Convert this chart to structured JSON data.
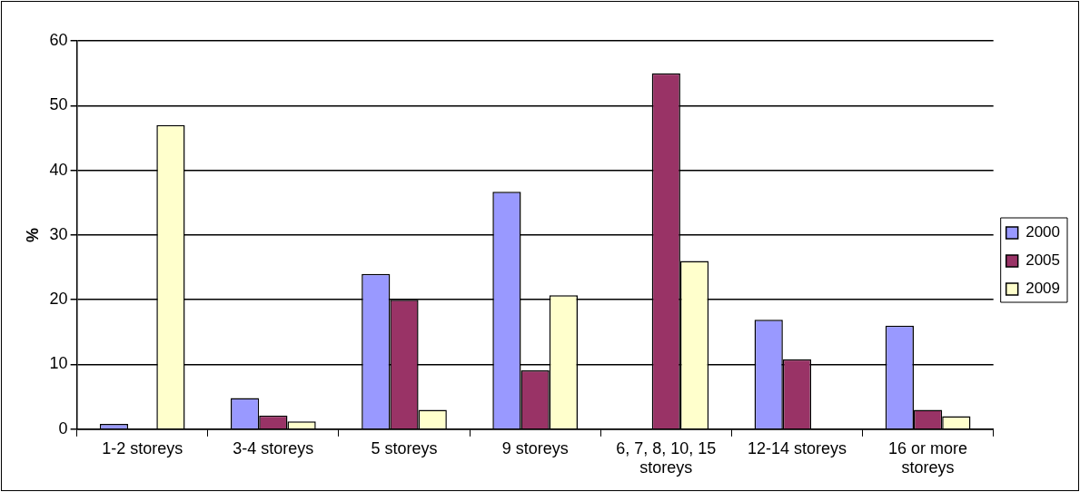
{
  "chart_data": {
    "type": "bar",
    "ylabel": "%",
    "categories": [
      "1-2 storeys",
      "3-4 storeys",
      "5 storeys",
      "9 storeys",
      "6, 7, 8, 10, 15 storeys",
      "12-14 storeys",
      "16 or more storeys"
    ],
    "series": [
      {
        "name": "2000",
        "color": "#9999ff",
        "values": [
          0.8,
          4.8,
          24,
          36.7,
          null,
          16.9,
          16
        ]
      },
      {
        "name": "2005",
        "color": "#993366",
        "values": [
          null,
          2.1,
          20,
          9.1,
          55,
          10.8,
          3
        ]
      },
      {
        "name": "2009",
        "color": "#ffffcc",
        "values": [
          47,
          1.2,
          3,
          20.7,
          26,
          null,
          2
        ]
      }
    ],
    "ylim": [
      0,
      60
    ],
    "yticks": [
      0,
      10,
      20,
      30,
      40,
      50,
      60
    ],
    "grid": "y",
    "legend": "right"
  }
}
